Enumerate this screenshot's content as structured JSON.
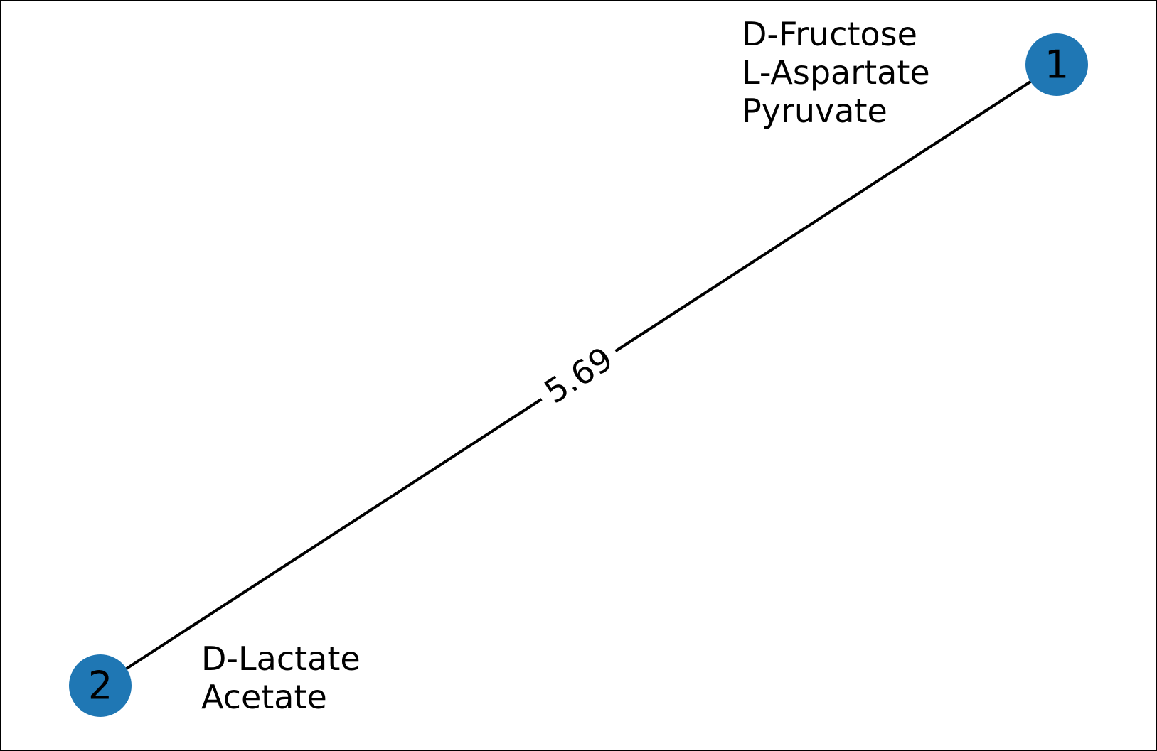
{
  "graph": {
    "nodes": [
      {
        "id": "1",
        "label": "1",
        "color": "#1f77b4",
        "annotation": [
          "D-Fructose",
          "L-Aspartate",
          "Pyruvate"
        ]
      },
      {
        "id": "2",
        "label": "2",
        "color": "#1f77b4",
        "annotation": [
          "D-Lactate",
          "Acetate"
        ]
      }
    ],
    "edges": [
      {
        "source": "1",
        "target": "2",
        "weight_label": "5.69",
        "color": "#000000"
      }
    ]
  }
}
